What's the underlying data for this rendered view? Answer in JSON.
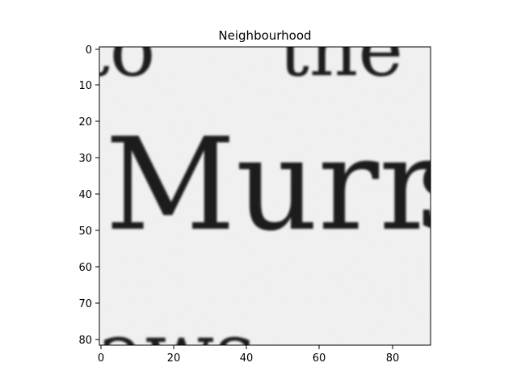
{
  "title": "Neighbourhood",
  "image": {
    "description_text_visible": [
      "to the",
      "Murr",
      "aws"
    ]
  },
  "axes": {
    "x_ticks": [
      "0",
      "20",
      "40",
      "60",
      "80"
    ],
    "y_ticks": [
      "0",
      "10",
      "20",
      "30",
      "40",
      "50",
      "60",
      "70",
      "80"
    ],
    "x_range": [
      0,
      90
    ],
    "y_range": [
      0,
      81
    ]
  },
  "colors": {
    "background": "#f2f2f2",
    "ink": "#1c1c1c",
    "frame": "#000000"
  }
}
